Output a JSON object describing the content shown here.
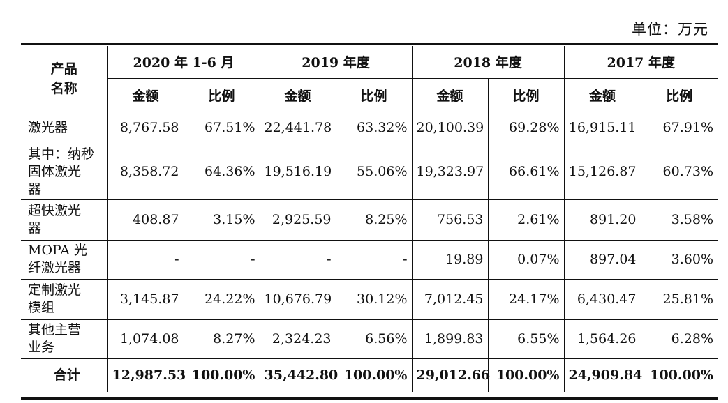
{
  "unit": "单位：万元",
  "header": {
    "product_label": "产品\n名称",
    "periods": [
      "2020 年 1-6 月",
      "2019 年度",
      "2018 年度",
      "2017 年度"
    ],
    "amount_label": "金额",
    "ratio_label": "比例"
  },
  "rows": [
    {
      "name": "激光器",
      "cells": [
        "8,767.58",
        "67.51%",
        "22,441.78",
        "63.32%",
        "20,100.39",
        "69.28%",
        "16,915.11",
        "67.91%"
      ]
    },
    {
      "name": "其中：纳秒\n固体激光\n器",
      "cells": [
        "8,358.72",
        "64.36%",
        "19,516.19",
        "55.06%",
        "19,323.97",
        "66.61%",
        "15,126.87",
        "60.73%"
      ]
    },
    {
      "name": "超快激光\n器",
      "cells": [
        "408.87",
        "3.15%",
        "2,925.59",
        "8.25%",
        "756.53",
        "2.61%",
        "891.20",
        "3.58%"
      ]
    },
    {
      "name": "MOPA 光\n纤激光器",
      "cells": [
        "-",
        "-",
        "-",
        "-",
        "19.89",
        "0.07%",
        "897.04",
        "3.60%"
      ]
    },
    {
      "name": "定制激光\n模组",
      "cells": [
        "3,145.87",
        "24.22%",
        "10,676.79",
        "30.12%",
        "7,012.45",
        "24.17%",
        "6,430.47",
        "25.81%"
      ]
    },
    {
      "name": "其他主营\n业务",
      "cells": [
        "1,074.08",
        "8.27%",
        "2,324.23",
        "6.56%",
        "1,899.83",
        "6.55%",
        "1,564.26",
        "6.28%"
      ]
    }
  ],
  "total": {
    "name": "合计",
    "cells": [
      "12,987.53",
      "100.00%",
      "35,442.80",
      "100.00%",
      "29,012.66",
      "100.00%",
      "24,909.84",
      "100.00%"
    ]
  }
}
